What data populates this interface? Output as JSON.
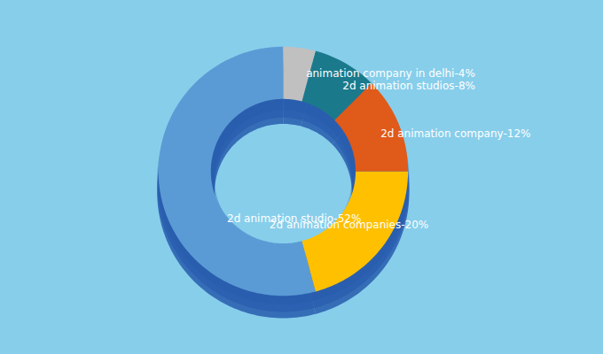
{
  "chart_data": {
    "type": "pie",
    "categories": [
      "2d animation studio",
      "2d animation companies",
      "2d animation company",
      "2d animation studios",
      "animation company in delhi"
    ],
    "values": [
      52,
      20,
      12,
      8,
      4
    ],
    "value_labels": [
      "2d animation studio-52%",
      "2d animation companies-20%",
      "2d animation company-12%",
      "2d animation studios-8%",
      "animation company in delhi-4%"
    ],
    "colors": [
      "#5B9BD5",
      "#FFC000",
      "#E05A1A",
      "#1A7A8C",
      "#C0C0C0"
    ],
    "data_labels": true
  }
}
